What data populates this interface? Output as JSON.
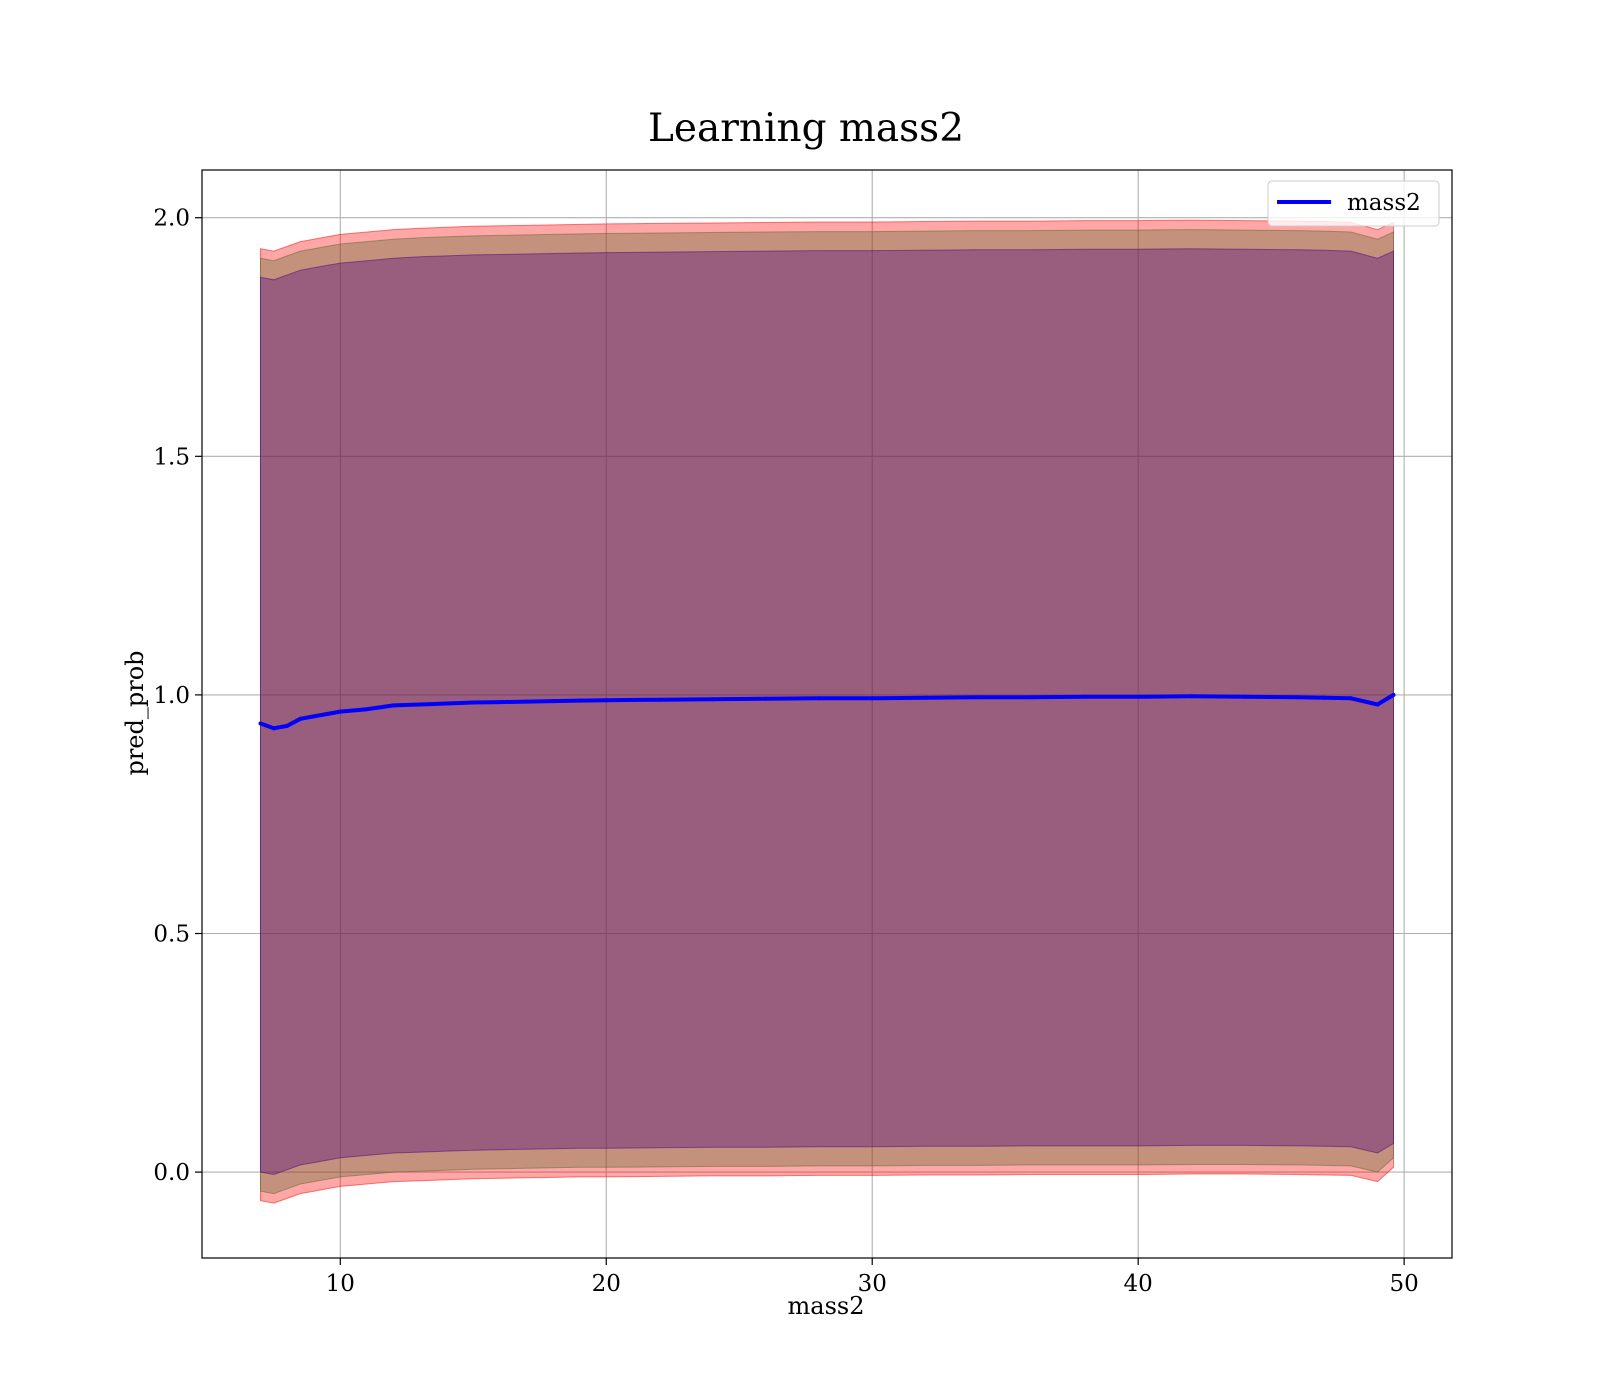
{
  "chart_data": {
    "type": "line",
    "title": "Learning mass2",
    "xlabel": "mass2",
    "ylabel": "pred_prob",
    "xlim": [
      4.8,
      51.8
    ],
    "ylim": [
      -0.18,
      2.1
    ],
    "xticks": [
      10,
      20,
      30,
      40,
      50
    ],
    "yticks": [
      0.0,
      0.5,
      1.0,
      1.5,
      2.0
    ],
    "xtick_labels": [
      "10",
      "20",
      "30",
      "40",
      "50"
    ],
    "ytick_labels": [
      "0.0",
      "0.5",
      "1.0",
      "1.5",
      "2.0"
    ],
    "grid": true,
    "legend_position": "top-right",
    "x": [
      7,
      7.5,
      8,
      8.5,
      9,
      9.5,
      10,
      11,
      12,
      13,
      14,
      15,
      16,
      17,
      18,
      19,
      20,
      22,
      24,
      26,
      28,
      30,
      32,
      34,
      36,
      38,
      40,
      42,
      44,
      46,
      47,
      48,
      49,
      49.6
    ],
    "series": [
      {
        "name": "mass2",
        "color": "#0000ff",
        "values": [
          0.94,
          0.93,
          0.935,
          0.95,
          0.955,
          0.96,
          0.965,
          0.97,
          0.978,
          0.98,
          0.982,
          0.984,
          0.985,
          0.986,
          0.987,
          0.988,
          0.989,
          0.99,
          0.991,
          0.992,
          0.993,
          0.993,
          0.994,
          0.995,
          0.995,
          0.996,
          0.996,
          0.997,
          0.996,
          0.995,
          0.994,
          0.993,
          0.98,
          1.0
        ]
      }
    ],
    "bands": [
      {
        "color": "#ff0000",
        "opacity": 0.35,
        "lower": [
          -0.06,
          -0.065,
          -0.055,
          -0.045,
          -0.04,
          -0.035,
          -0.03,
          -0.025,
          -0.02,
          -0.018,
          -0.016,
          -0.014,
          -0.013,
          -0.012,
          -0.011,
          -0.01,
          -0.01,
          -0.009,
          -0.008,
          -0.008,
          -0.007,
          -0.007,
          -0.006,
          -0.006,
          -0.005,
          -0.005,
          -0.005,
          -0.004,
          -0.004,
          -0.005,
          -0.006,
          -0.007,
          -0.02,
          0.01
        ],
        "upper": [
          1.935,
          1.93,
          1.94,
          1.95,
          1.955,
          1.96,
          1.965,
          1.97,
          1.975,
          1.978,
          1.98,
          1.982,
          1.983,
          1.984,
          1.985,
          1.986,
          1.987,
          1.988,
          1.989,
          1.99,
          1.991,
          1.991,
          1.992,
          1.993,
          1.993,
          1.994,
          1.994,
          1.995,
          1.994,
          1.993,
          1.992,
          1.99,
          1.975,
          1.99
        ]
      },
      {
        "color": "#556b2f",
        "opacity": 0.35,
        "lower": [
          -0.04,
          -0.045,
          -0.035,
          -0.025,
          -0.02,
          -0.015,
          -0.01,
          -0.005,
          0.0,
          0.002,
          0.004,
          0.006,
          0.007,
          0.008,
          0.009,
          0.01,
          0.01,
          0.011,
          0.012,
          0.012,
          0.013,
          0.013,
          0.014,
          0.014,
          0.015,
          0.015,
          0.015,
          0.016,
          0.016,
          0.015,
          0.014,
          0.013,
          0.0,
          0.03
        ],
        "upper": [
          1.915,
          1.91,
          1.92,
          1.93,
          1.935,
          1.94,
          1.945,
          1.95,
          1.955,
          1.958,
          1.96,
          1.962,
          1.963,
          1.964,
          1.965,
          1.966,
          1.967,
          1.968,
          1.969,
          1.97,
          1.971,
          1.971,
          1.972,
          1.973,
          1.973,
          1.974,
          1.974,
          1.975,
          1.974,
          1.973,
          1.972,
          1.97,
          1.955,
          1.97
        ]
      },
      {
        "color": "#4b0082",
        "opacity": 0.35,
        "lower": [
          0.0,
          -0.005,
          0.005,
          0.015,
          0.02,
          0.025,
          0.03,
          0.035,
          0.04,
          0.042,
          0.044,
          0.046,
          0.047,
          0.048,
          0.049,
          0.05,
          0.05,
          0.051,
          0.052,
          0.052,
          0.053,
          0.053,
          0.054,
          0.054,
          0.055,
          0.055,
          0.055,
          0.056,
          0.056,
          0.055,
          0.054,
          0.053,
          0.04,
          0.06
        ],
        "upper": [
          1.875,
          1.87,
          1.88,
          1.89,
          1.895,
          1.9,
          1.905,
          1.91,
          1.915,
          1.918,
          1.92,
          1.922,
          1.923,
          1.924,
          1.925,
          1.926,
          1.927,
          1.928,
          1.929,
          1.93,
          1.931,
          1.931,
          1.932,
          1.933,
          1.933,
          1.934,
          1.934,
          1.935,
          1.934,
          1.933,
          1.932,
          1.93,
          1.915,
          1.93
        ]
      }
    ]
  }
}
